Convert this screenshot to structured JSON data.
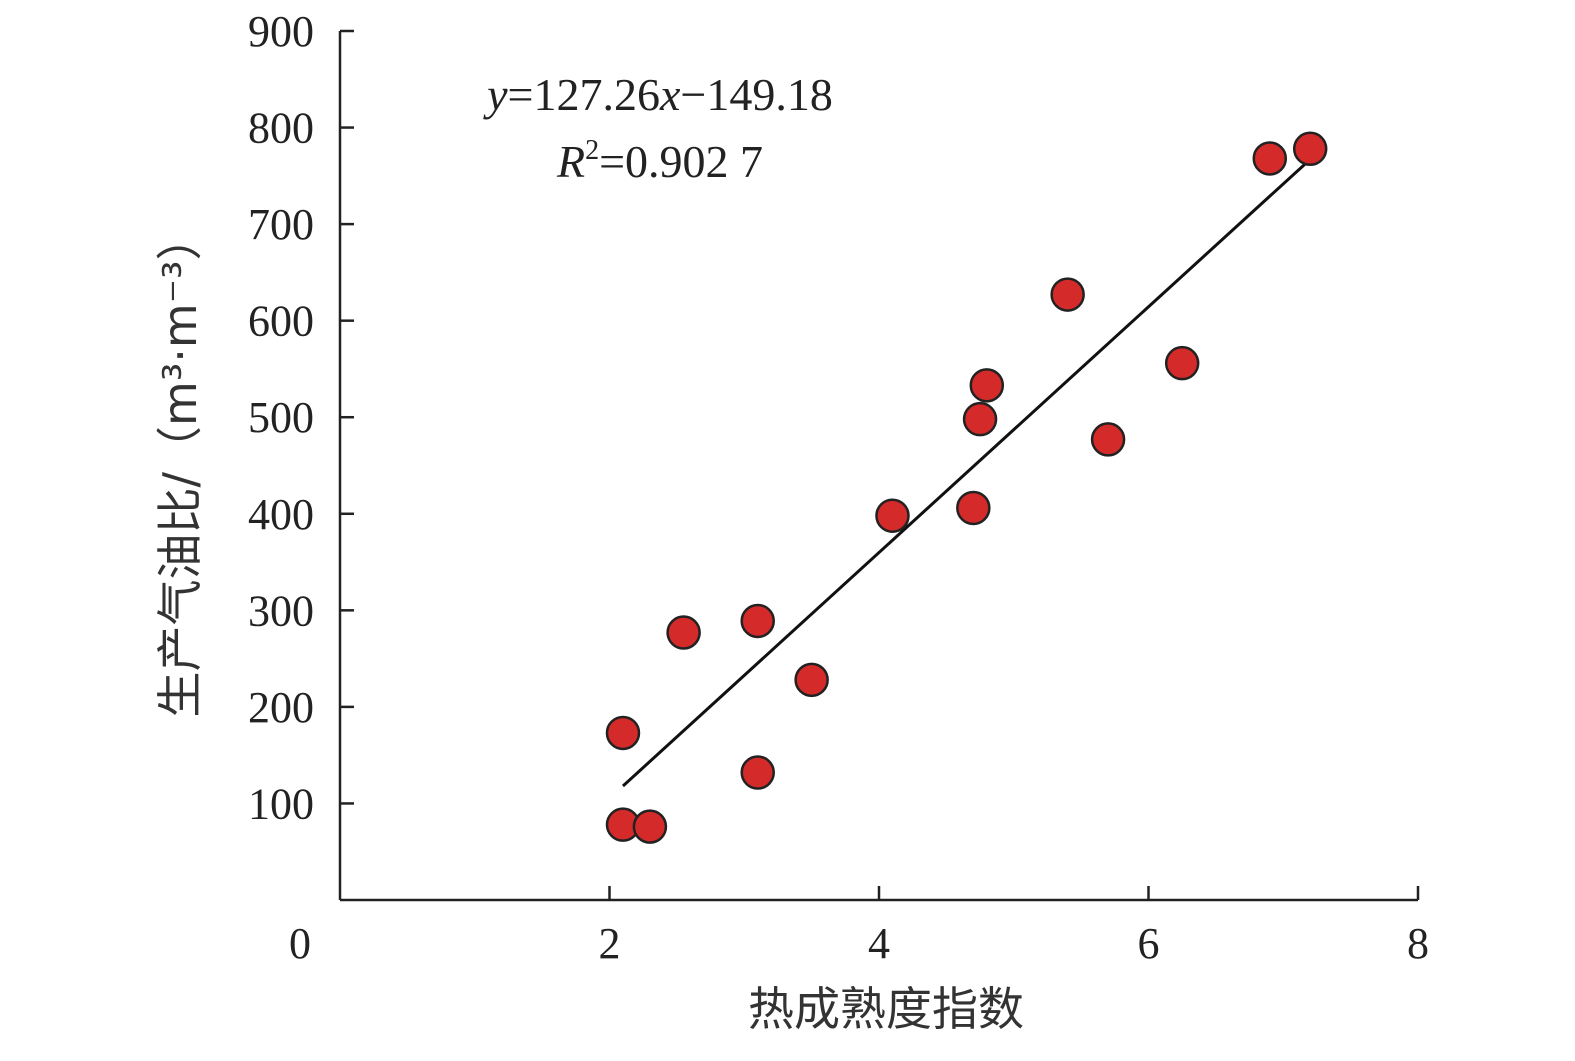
{
  "chart_data": {
    "type": "scatter",
    "xlabel": "热成熟度指数",
    "ylabel": "生产气油比/（m³·m⁻³）",
    "xlim": [
      0,
      8
    ],
    "ylim": [
      0,
      900
    ],
    "x_ticks": [
      2,
      4,
      6,
      8
    ],
    "y_ticks": [
      100,
      200,
      300,
      400,
      500,
      600,
      700,
      800,
      900
    ],
    "origin_label": "0",
    "grid": false,
    "marker_color": "#d42a2a",
    "series": [
      {
        "points": [
          {
            "x": 2.1,
            "y": 78
          },
          {
            "x": 2.3,
            "y": 76
          },
          {
            "x": 2.1,
            "y": 173
          },
          {
            "x": 2.55,
            "y": 277
          },
          {
            "x": 3.1,
            "y": 289
          },
          {
            "x": 3.1,
            "y": 132
          },
          {
            "x": 3.5,
            "y": 228
          },
          {
            "x": 4.1,
            "y": 398
          },
          {
            "x": 4.7,
            "y": 406
          },
          {
            "x": 4.75,
            "y": 498
          },
          {
            "x": 4.8,
            "y": 533
          },
          {
            "x": 5.4,
            "y": 627
          },
          {
            "x": 5.7,
            "y": 477
          },
          {
            "x": 6.25,
            "y": 556
          },
          {
            "x": 6.9,
            "y": 768
          },
          {
            "x": 7.2,
            "y": 778
          }
        ]
      }
    ],
    "trendline": {
      "slope": 127.26,
      "intercept": -149.18,
      "x_range": [
        2.1,
        7.2
      ]
    },
    "equation": {
      "y_var": "y",
      "eq_a": "=127.26",
      "x_var": "x",
      "eq_b": "−149.18"
    },
    "r2": {
      "var": "R",
      "exp": "2",
      "value": "=0.902 7"
    }
  }
}
